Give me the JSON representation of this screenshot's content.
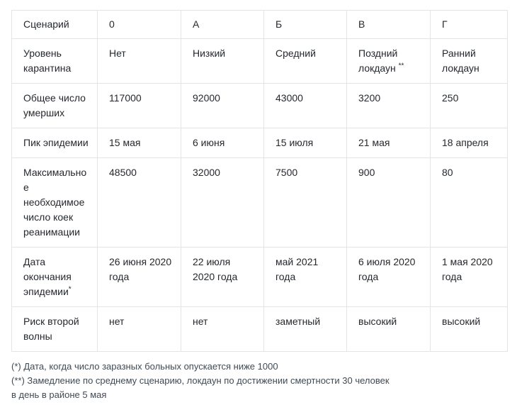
{
  "table": {
    "header": [
      "Сценарий",
      "0",
      "А",
      "Б",
      "В",
      "Г"
    ],
    "rows": [
      {
        "label": "Уровень карантина",
        "cells": [
          "Нет",
          "Низкий",
          "Средний",
          "Поздний локдаун **",
          "Ранний локдаун"
        ]
      },
      {
        "label": "Общее число умерших",
        "cells": [
          "117000",
          "92000",
          "43000",
          "3200",
          "250"
        ]
      },
      {
        "label": "Пик эпидемии",
        "cells": [
          "15 мая",
          "6 июня",
          "15 июля",
          "21 мая",
          "18 апреля"
        ]
      },
      {
        "label": "Максимальное необходимое число коек реанимации",
        "cells": [
          "48500",
          "32000",
          "7500",
          "900",
          "80"
        ]
      },
      {
        "label": "Дата окончания эпидемии*",
        "cells": [
          "26 июня 2020 года",
          "22 июля 2020 года",
          "май 2021 года",
          "6 июля 2020 года",
          "1 мая 2020 года"
        ]
      },
      {
        "label": "Риск второй волны",
        "cells": [
          "нет",
          "нет",
          "заметный",
          "высокий",
          "высокий"
        ]
      }
    ]
  },
  "footnotes": [
    "(*) Дата, когда число заразных больных опускается ниже 1000",
    "(**) Замедление по среднему сценарию, локдаун по достижении смертности 30 человек",
    "в день в районе 5 мая"
  ],
  "colors": {
    "border": "#e4e4e4",
    "text": "#25282d",
    "footnote_text": "#414a53",
    "background": "#ffffff"
  }
}
